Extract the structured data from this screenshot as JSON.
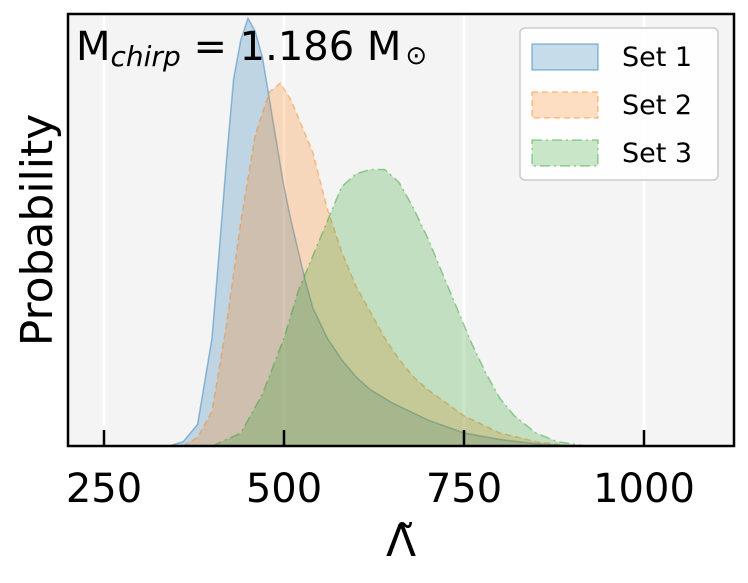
{
  "chart_data": {
    "type": "area",
    "xlabel": "Λ̃",
    "ylabel": "Probability",
    "xlim": [
      200,
      1125
    ],
    "ylim": [
      0,
      1.0
    ],
    "xticks": [
      250,
      500,
      750,
      1000
    ],
    "grid": "vertical",
    "legend_position": "top-right",
    "annotation": {
      "base": "M",
      "sub": "chirp",
      "text": " = 1.186 M",
      "symbol": "⊙"
    },
    "series": [
      {
        "name": "Set 1",
        "color": "#1f77b4",
        "linestyle": "solid",
        "x": [
          340,
          360,
          380,
          400,
          410,
          420,
          430,
          440,
          450,
          460,
          470,
          480,
          490,
          500,
          510,
          520,
          530,
          540,
          560,
          580,
          600,
          620,
          650,
          700,
          750,
          800,
          850,
          900
        ],
        "y": [
          0,
          0.01,
          0.05,
          0.25,
          0.45,
          0.66,
          0.85,
          0.94,
          0.99,
          0.96,
          0.9,
          0.8,
          0.7,
          0.6,
          0.52,
          0.45,
          0.38,
          0.32,
          0.25,
          0.2,
          0.16,
          0.13,
          0.1,
          0.06,
          0.03,
          0.015,
          0.005,
          0
        ]
      },
      {
        "name": "Set 2",
        "color": "#ff7f0e",
        "linestyle": "dashed",
        "x": [
          360,
          380,
          400,
          420,
          440,
          460,
          480,
          495,
          510,
          520,
          540,
          560,
          580,
          600,
          620,
          640,
          660,
          680,
          700,
          750,
          800,
          850,
          900
        ],
        "y": [
          0,
          0.02,
          0.08,
          0.28,
          0.52,
          0.72,
          0.82,
          0.84,
          0.8,
          0.76,
          0.68,
          0.55,
          0.45,
          0.37,
          0.31,
          0.25,
          0.2,
          0.16,
          0.13,
          0.07,
          0.03,
          0.01,
          0
        ]
      },
      {
        "name": "Set 3",
        "color": "#2ca02c",
        "linestyle": "dashdot",
        "x": [
          400,
          440,
          470,
          500,
          520,
          540,
          560,
          580,
          600,
          620,
          640,
          660,
          680,
          700,
          720,
          740,
          760,
          780,
          800,
          820,
          850,
          880,
          920
        ],
        "y": [
          0,
          0.03,
          0.12,
          0.25,
          0.36,
          0.44,
          0.52,
          0.6,
          0.63,
          0.64,
          0.64,
          0.61,
          0.55,
          0.48,
          0.4,
          0.32,
          0.24,
          0.17,
          0.11,
          0.07,
          0.03,
          0.01,
          0
        ]
      }
    ]
  }
}
